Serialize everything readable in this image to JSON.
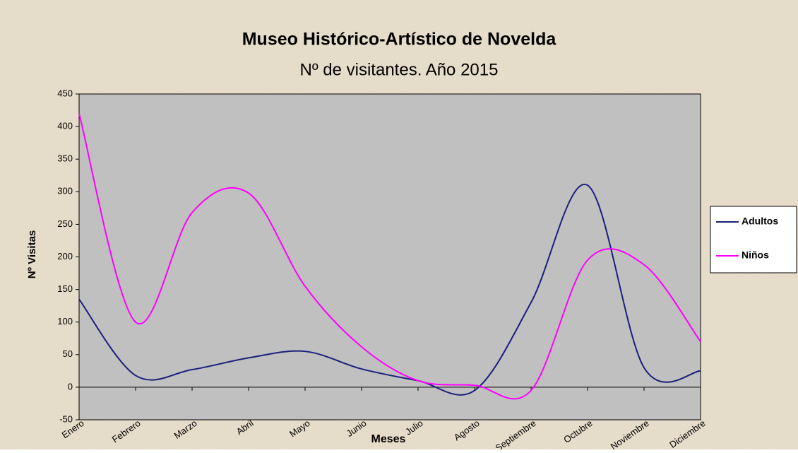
{
  "chart_data": {
    "type": "line",
    "title": "Museo Histórico-Artístico de Novelda",
    "subtitle": "Nº de visitantes. Año 2015",
    "x_label": "Meses",
    "y_label": "Nº Visitas",
    "categories": [
      "Enero",
      "Febrero",
      "Marzo",
      "Abril",
      "Mayo",
      "Junio",
      "Julio",
      "Agosto",
      "Septiembre",
      "Octubre",
      "Noviembre",
      "Diciembre"
    ],
    "series": [
      {
        "name": "Adultos",
        "color": "#1a1f7a",
        "values": [
          135,
          18,
          27,
          45,
          55,
          28,
          10,
          -5,
          130,
          310,
          30,
          25
        ]
      },
      {
        "name": "Niños",
        "color": "#ff00ff",
        "values": [
          420,
          100,
          268,
          298,
          155,
          62,
          10,
          3,
          -5,
          195,
          188,
          70
        ]
      }
    ],
    "ylim": [
      -50,
      450
    ],
    "yticks": [
      -50,
      0,
      50,
      100,
      150,
      200,
      250,
      300,
      350,
      400,
      450
    ],
    "legend": "right",
    "smooth": true
  }
}
